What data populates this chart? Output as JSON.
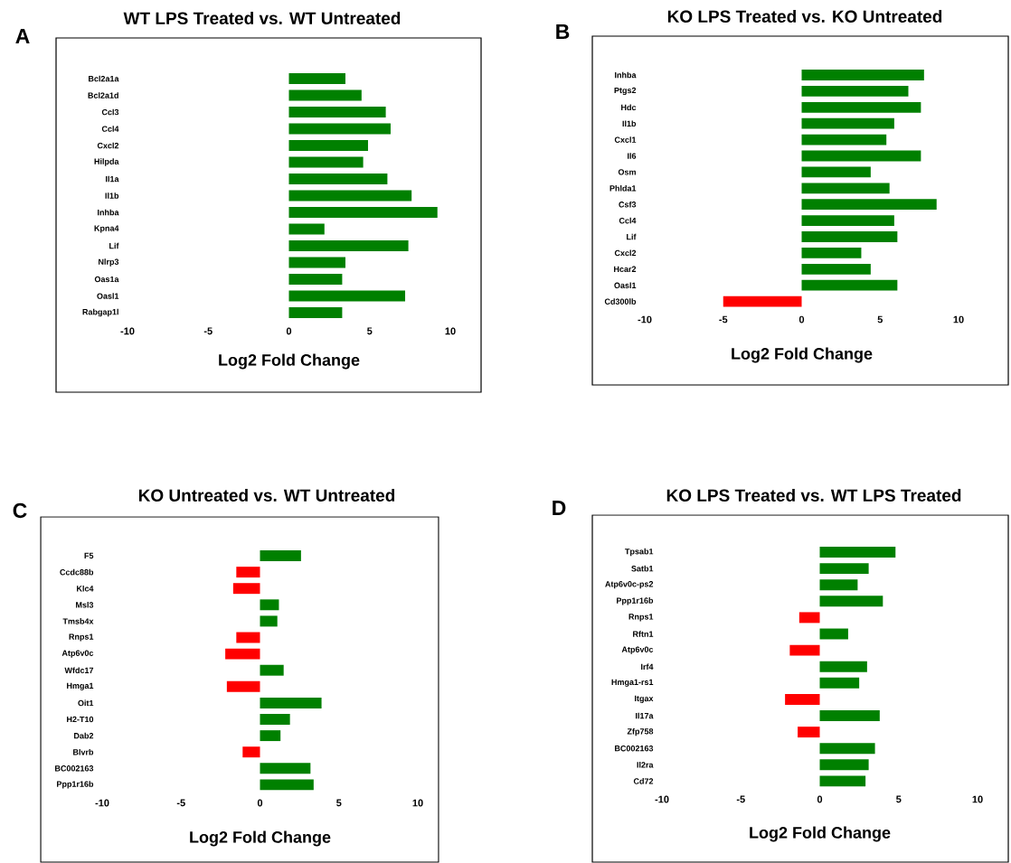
{
  "chart_data": [
    {
      "type": "bar",
      "orientation": "horizontal",
      "title": "WT LPS Treated vs. WT Untreated",
      "xlabel": "Log2 Fold Change",
      "annotations": [
        "A"
      ],
      "xlim": [
        -10,
        10
      ],
      "xticks": [
        -10,
        -5,
        0,
        5,
        10
      ],
      "categories": [
        "Bcl2a1a",
        "Bcl2a1d",
        "Ccl3",
        "Ccl4",
        "Cxcl2",
        "Hilpda",
        "Il1a",
        "Il1b",
        "Inhba",
        "Kpna4",
        "Lif",
        "Nlrp3",
        "Oas1a",
        "Oasl1",
        "Rabgap1l"
      ],
      "values": [
        3.5,
        4.5,
        6.0,
        6.3,
        4.9,
        4.6,
        6.1,
        7.6,
        9.2,
        2.2,
        7.4,
        3.5,
        3.3,
        7.2,
        3.3
      ],
      "colors": [
        "#008000",
        "#008000",
        "#008000",
        "#008000",
        "#008000",
        "#008000",
        "#008000",
        "#008000",
        "#008000",
        "#008000",
        "#008000",
        "#008000",
        "#008000",
        "#008000",
        "#008000"
      ]
    },
    {
      "type": "bar",
      "orientation": "horizontal",
      "title": "KO LPS Treated vs. KO Untreated",
      "xlabel": "Log2 Fold Change",
      "annotations": [
        "B"
      ],
      "xlim": [
        -10,
        10
      ],
      "xticks": [
        -10,
        -5,
        0,
        5,
        10
      ],
      "categories": [
        "Inhba",
        "Ptgs2",
        "Hdc",
        "Il1b",
        "Cxcl1",
        "Il6",
        "Osm",
        "Phlda1",
        "Csf3",
        "Ccl4",
        "Lif",
        "Cxcl2",
        "Hcar2",
        "Oasl1",
        "Cd300lb"
      ],
      "values": [
        7.8,
        6.8,
        7.6,
        5.9,
        5.4,
        7.6,
        4.4,
        5.6,
        8.6,
        5.9,
        6.1,
        3.8,
        4.4,
        6.1,
        -5.0
      ],
      "colors": [
        "#008000",
        "#008000",
        "#008000",
        "#008000",
        "#008000",
        "#008000",
        "#008000",
        "#008000",
        "#008000",
        "#008000",
        "#008000",
        "#008000",
        "#008000",
        "#008000",
        "#ff0000"
      ]
    },
    {
      "type": "bar",
      "orientation": "horizontal",
      "title": "KO Untreated vs. WT Untreated",
      "xlabel": "Log2 Fold Change",
      "annotations": [
        "C"
      ],
      "xlim": [
        -10,
        10
      ],
      "xticks": [
        -10,
        -5,
        0,
        5,
        10
      ],
      "categories": [
        "F5",
        "Ccdc88b",
        "Klc4",
        "Msl3",
        "Tmsb4x",
        "Rnps1",
        "Atp6v0c",
        "Wfdc17",
        "Hmga1",
        "Oit1",
        "H2-T10",
        "Dab2",
        "Blvrb",
        "BC002163",
        "Ppp1r16b"
      ],
      "values": [
        2.6,
        -1.5,
        -1.7,
        1.2,
        1.1,
        -1.5,
        -2.2,
        1.5,
        -2.1,
        3.9,
        1.9,
        1.3,
        -1.1,
        3.2,
        3.4
      ],
      "colors": [
        "#008000",
        "#ff0000",
        "#ff0000",
        "#008000",
        "#008000",
        "#ff0000",
        "#ff0000",
        "#008000",
        "#ff0000",
        "#008000",
        "#008000",
        "#008000",
        "#ff0000",
        "#008000",
        "#008000"
      ]
    },
    {
      "type": "bar",
      "orientation": "horizontal",
      "title": "KO LPS Treated vs. WT LPS Treated",
      "xlabel": "Log2 Fold Change",
      "annotations": [
        "D"
      ],
      "xlim": [
        -10,
        10
      ],
      "xticks": [
        -10,
        -5,
        0,
        5,
        10
      ],
      "categories": [
        "Tpsab1",
        "Satb1",
        "Atp6v0c-ps2",
        "Ppp1r16b",
        "Rnps1",
        "Rftn1",
        "Atp6v0c",
        "Irf4",
        "Hmga1-rs1",
        "Itgax",
        "Il17a",
        "Zfp758",
        "BC002163",
        "Il2ra",
        "Cd72"
      ],
      "values": [
        4.8,
        3.1,
        2.4,
        4.0,
        -1.3,
        1.8,
        -1.9,
        3.0,
        2.5,
        -2.2,
        3.8,
        -1.4,
        3.5,
        3.1,
        2.9
      ],
      "colors": [
        "#008000",
        "#008000",
        "#008000",
        "#008000",
        "#ff0000",
        "#008000",
        "#ff0000",
        "#008000",
        "#008000",
        "#ff0000",
        "#008000",
        "#ff0000",
        "#008000",
        "#008000",
        "#008000"
      ]
    }
  ]
}
